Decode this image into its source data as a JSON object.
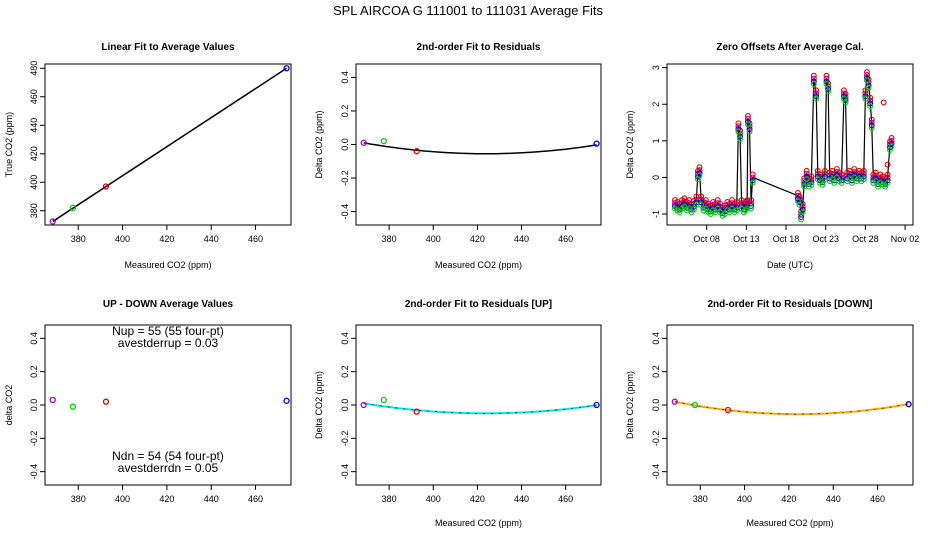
{
  "page_title": "SPL   AIRCOA G   111001 to 111031   Average Fits",
  "colors": {
    "red": "#e00000",
    "green": "#00cc00",
    "blue": "#0000cc",
    "purple": "#aa00cc",
    "cyan": "#00e5e5",
    "orange": "#ffa500",
    "black": "#000000"
  },
  "chart_data": [
    {
      "id": "p1",
      "type": "scatter",
      "title": "Linear Fit to Average Values",
      "xlabel": "Measured CO2 (ppm)",
      "ylabel": "True CO2 (ppm)",
      "xlim": [
        365,
        476
      ],
      "ylim": [
        370,
        483
      ],
      "xticks": [
        380,
        400,
        420,
        440,
        460
      ],
      "yticks": [
        380,
        400,
        420,
        440,
        460,
        480
      ],
      "series": [
        {
          "name": "cal1",
          "color": "purple",
          "x": [
            368.5
          ],
          "y": [
            372.5
          ]
        },
        {
          "name": "cal2",
          "color": "green",
          "x": [
            377.6
          ],
          "y": [
            382.0
          ]
        },
        {
          "name": "cal3",
          "color": "red",
          "x": [
            392.5
          ],
          "y": [
            397.0
          ]
        },
        {
          "name": "cal4",
          "color": "blue",
          "x": [
            474.0
          ],
          "y": [
            480.0
          ]
        }
      ],
      "fit": {
        "kind": "line",
        "color": "black",
        "x": [
          368.5,
          474.0
        ],
        "y": [
          372.5,
          480.0
        ]
      }
    },
    {
      "id": "p2",
      "type": "scatter",
      "title": "2nd-order Fit to Residuals",
      "xlabel": "Measured CO2 (ppm)",
      "ylabel": "Delta CO2 (ppm)",
      "xlim": [
        365,
        476
      ],
      "ylim": [
        -0.48,
        0.48
      ],
      "xticks": [
        380,
        400,
        420,
        440,
        460
      ],
      "yticks": [
        -0.4,
        -0.2,
        0.0,
        0.2,
        0.4
      ],
      "series": [
        {
          "name": "cal1",
          "color": "purple",
          "x": [
            368.5
          ],
          "y": [
            0.01
          ]
        },
        {
          "name": "cal2",
          "color": "green",
          "x": [
            377.6
          ],
          "y": [
            0.02
          ]
        },
        {
          "name": "cal3",
          "color": "red",
          "x": [
            392.5
          ],
          "y": [
            -0.04
          ]
        },
        {
          "name": "cal4",
          "color": "blue",
          "x": [
            474.0
          ],
          "y": [
            0.005
          ]
        }
      ],
      "fit": {
        "kind": "quadratic",
        "color": "black",
        "x0": 368.5,
        "x1": 474.0,
        "vertex_x": 424,
        "vertex_y": -0.055,
        "y_at_x0": 0.01
      }
    },
    {
      "id": "p3",
      "type": "line",
      "title": "Zero Offsets After Average Cal.",
      "xlabel": "Date (UTC)",
      "ylabel": "Delta CO2 (ppm)",
      "xlim": [
        3,
        34
      ],
      "ylim": [
        -1.3,
        3.1
      ],
      "xticks": [
        8,
        13,
        18,
        23,
        28,
        33
      ],
      "xticklabels": [
        "Oct 08",
        "Oct 13",
        "Oct 18",
        "Oct 23",
        "Oct 28",
        "Nov 02"
      ],
      "yticks": [
        -1,
        0,
        1,
        2,
        3
      ],
      "line_series": {
        "color": "black",
        "x": [
          4.0,
          4.3,
          4.6,
          4.9,
          5.2,
          5.5,
          5.8,
          6.1,
          6.4,
          6.7,
          6.9,
          7.1,
          7.3,
          7.6,
          7.9,
          8.2,
          8.5,
          8.8,
          9.1,
          9.4,
          9.7,
          10.0,
          10.3,
          10.6,
          10.9,
          11.2,
          11.5,
          11.8,
          12.0,
          12.2,
          12.4,
          12.7,
          12.9,
          13.1,
          13.2,
          13.4,
          13.6,
          13.8,
          19.5,
          19.7,
          19.9,
          20.1,
          20.3,
          20.6,
          20.9,
          21.2,
          21.5,
          21.8,
          22.0,
          22.3,
          22.6,
          22.9,
          23.1,
          23.3,
          23.5,
          23.8,
          24.1,
          24.4,
          24.7,
          25.0,
          25.3,
          25.5,
          25.7,
          26.0,
          26.3,
          26.6,
          26.9,
          27.2,
          27.5,
          27.8,
          28.0,
          28.2,
          28.4,
          28.6,
          28.8,
          29.0,
          29.3,
          29.6,
          29.9,
          30.2,
          30.5,
          30.8,
          31.1,
          31.3
        ],
        "y": [
          -0.7,
          -0.75,
          -0.8,
          -0.7,
          -0.65,
          -0.75,
          -0.7,
          -0.8,
          -0.72,
          -0.6,
          0.1,
          0.2,
          -0.6,
          -0.75,
          -0.7,
          -0.8,
          -0.85,
          -0.75,
          -0.8,
          -0.7,
          -0.8,
          -0.9,
          -0.85,
          -0.75,
          -0.8,
          -0.7,
          -0.8,
          -0.75,
          1.4,
          1.2,
          -0.7,
          -0.8,
          -0.75,
          -0.7,
          1.6,
          1.4,
          -0.7,
          0.0,
          -0.5,
          -0.6,
          -1.0,
          -0.8,
          -0.1,
          0.1,
          -0.1,
          -0.05,
          2.7,
          2.3,
          0.1,
          0.0,
          -0.05,
          0.1,
          2.7,
          2.5,
          0.05,
          0.1,
          0.0,
          0.15,
          0.05,
          0.0,
          2.3,
          2.2,
          0.05,
          0.1,
          0.0,
          0.15,
          0.05,
          0.1,
          0.05,
          0.1,
          2.3,
          2.8,
          2.6,
          2.1,
          1.5,
          0.0,
          0.05,
          -0.1,
          0.0,
          -0.05,
          -0.1,
          0.0,
          0.9,
          1.0
        ]
      },
      "point_series": [
        {
          "name": "cal1",
          "color": "purple",
          "dy": 0.0
        },
        {
          "name": "cal2",
          "color": "red",
          "dy": 0.08
        },
        {
          "name": "cal3",
          "color": "blue",
          "dy": -0.08
        },
        {
          "name": "cal4",
          "color": "green",
          "dy": -0.15
        }
      ],
      "extra_points": [
        {
          "color": "red",
          "x": 30.3,
          "y": 2.05
        },
        {
          "color": "red",
          "x": 30.8,
          "y": 0.35
        }
      ]
    },
    {
      "id": "p4",
      "type": "scatter",
      "title": "UP - DOWN Average Values",
      "xlabel": "",
      "ylabel": "delta CO2",
      "xlim": [
        365,
        476
      ],
      "ylim": [
        -0.48,
        0.48
      ],
      "xticks": [
        380,
        400,
        420,
        440,
        460
      ],
      "yticks": [
        -0.4,
        -0.2,
        0.0,
        0.2,
        0.4
      ],
      "series": [
        {
          "name": "cal1",
          "color": "purple",
          "x": [
            368.5
          ],
          "y": [
            0.03
          ]
        },
        {
          "name": "cal2",
          "color": "green",
          "x": [
            377.6
          ],
          "y": [
            -0.01
          ]
        },
        {
          "name": "cal3",
          "color": "red",
          "x": [
            392.5
          ],
          "y": [
            0.02
          ]
        },
        {
          "name": "cal4",
          "color": "blue",
          "x": [
            474.0
          ],
          "y": [
            0.025
          ]
        }
      ],
      "annotations": [
        "Nup = 55 (55 four-pt)",
        "avestderrup =  0.03",
        "Ndn = 54 (54 four-pt)",
        "avestderrdn =  0.05"
      ]
    },
    {
      "id": "p5",
      "type": "scatter",
      "title": "2nd-order Fit to Residuals [UP]",
      "xlabel": "Measured CO2 (ppm)",
      "ylabel": "Delta CO2 (ppm)",
      "xlim": [
        365,
        476
      ],
      "ylim": [
        -0.48,
        0.48
      ],
      "xticks": [
        380,
        400,
        420,
        440,
        460
      ],
      "yticks": [
        -0.4,
        -0.2,
        0.0,
        0.2,
        0.4
      ],
      "series": [
        {
          "name": "cal1",
          "color": "purple",
          "x": [
            368.5
          ],
          "y": [
            0.0
          ]
        },
        {
          "name": "cal2",
          "color": "green",
          "x": [
            377.6
          ],
          "y": [
            0.03
          ]
        },
        {
          "name": "cal3",
          "color": "red",
          "x": [
            392.5
          ],
          "y": [
            -0.04
          ]
        },
        {
          "name": "cal4",
          "color": "blue",
          "x": [
            474.0
          ],
          "y": [
            0.0
          ]
        }
      ],
      "fit": {
        "kind": "quadratic",
        "color": "cyan",
        "x0": 368.5,
        "x1": 474.0,
        "vertex_x": 424,
        "vertex_y": -0.05,
        "y_at_x0": 0.01
      }
    },
    {
      "id": "p6",
      "type": "scatter",
      "title": "2nd-order Fit to Residuals [DOWN]",
      "xlabel": "Measured CO2 (ppm)",
      "ylabel": "Delta CO2 (ppm)",
      "xlim": [
        365,
        476
      ],
      "ylim": [
        -0.48,
        0.48
      ],
      "xticks": [
        380,
        400,
        420,
        440,
        460
      ],
      "yticks": [
        -0.4,
        -0.2,
        0.0,
        0.2,
        0.4
      ],
      "series": [
        {
          "name": "cal1",
          "color": "purple",
          "x": [
            368.5
          ],
          "y": [
            0.02
          ]
        },
        {
          "name": "cal2",
          "color": "green",
          "x": [
            377.6
          ],
          "y": [
            0.0
          ]
        },
        {
          "name": "cal3",
          "color": "red",
          "x": [
            392.5
          ],
          "y": [
            -0.03
          ]
        },
        {
          "name": "cal4",
          "color": "blue",
          "x": [
            474.0
          ],
          "y": [
            0.005
          ]
        }
      ],
      "fit": {
        "kind": "quadratic",
        "color": "orange",
        "x0": 368.5,
        "x1": 474.0,
        "vertex_x": 424,
        "vertex_y": -0.055,
        "y_at_x0": 0.02
      }
    }
  ]
}
